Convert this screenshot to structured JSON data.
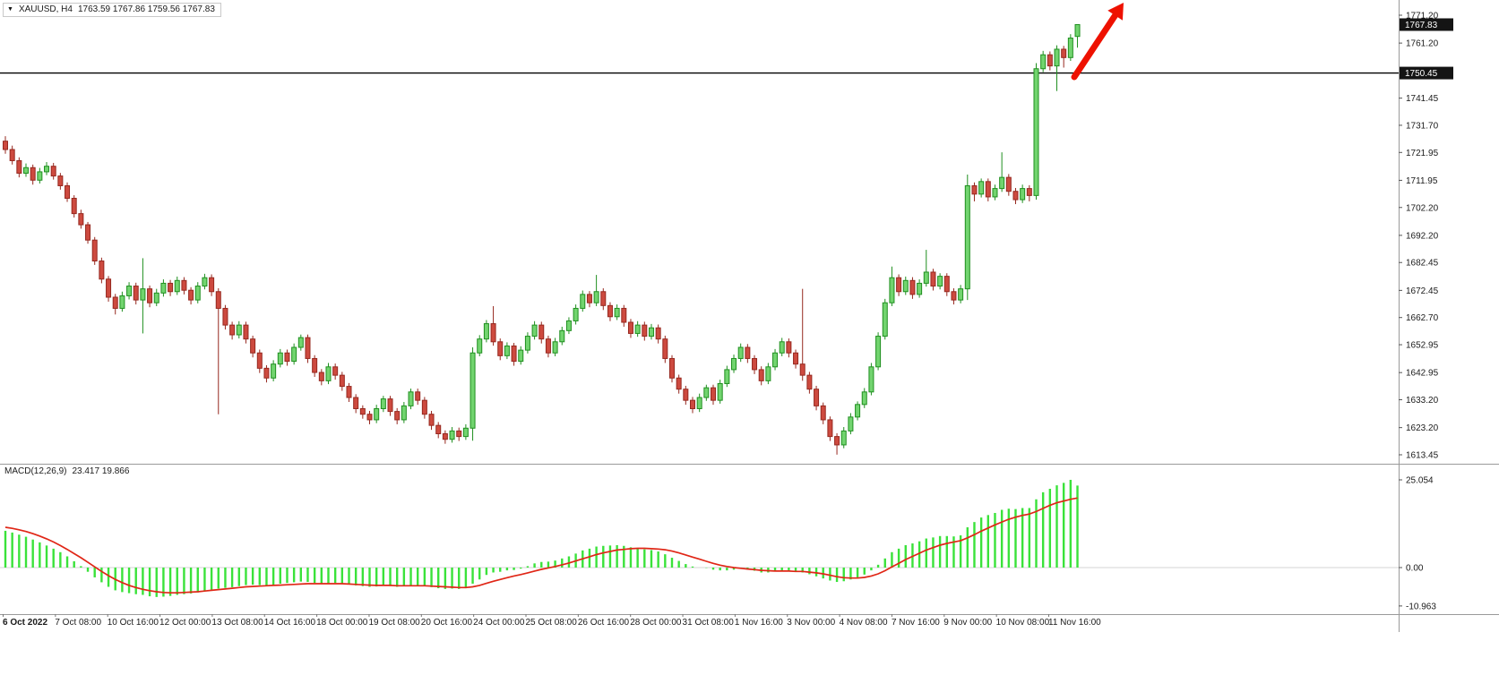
{
  "quote": {
    "symbol": "XAUUSD, H4",
    "ohlc": "1763.59 1767.86 1759.56 1767.83"
  },
  "macd_label": {
    "name": "MACD(12,26,9)",
    "values": "23.417 19.866"
  },
  "price_axis": {
    "ticks": [
      "1771.20",
      "1761.20",
      "1741.45",
      "1731.70",
      "1721.95",
      "1711.95",
      "1702.20",
      "1692.20",
      "1682.45",
      "1672.45",
      "1662.70",
      "1652.95",
      "1642.95",
      "1633.20",
      "1623.20",
      "1613.45"
    ],
    "current_badge": "1767.83",
    "hline_badge": "1750.45"
  },
  "macd_axis": [
    "25.054",
    "0.00",
    "-10.963"
  ],
  "time_axis": [
    "6 Oct 2022",
    "7 Oct 08:00",
    "10 Oct 16:00",
    "12 Oct 00:00",
    "13 Oct 08:00",
    "14 Oct 16:00",
    "18 Oct 00:00",
    "19 Oct 08:00",
    "20 Oct 16:00",
    "24 Oct 00:00",
    "25 Oct 08:00",
    "26 Oct 16:00",
    "28 Oct 00:00",
    "31 Oct 08:00",
    "1 Nov 16:00",
    "3 Nov 00:00",
    "4 Nov 08:00",
    "7 Nov 16:00",
    "9 Nov 00:00",
    "10 Nov 08:00",
    "11 Nov 16:00"
  ],
  "colors": {
    "bull": "#72d46f",
    "bull_border": "#1f8f1f",
    "bear": "#cd4a3f",
    "bear_border": "#96281f",
    "macd_hist": "#3ae23a",
    "macd_signal": "#e02616",
    "hline": "#000000",
    "arrow": "#ee1100",
    "badge_bg": "#141414",
    "badge_text": "#ffffff",
    "axis_line": "#9a9a9a",
    "zero_line": "#d6d6d6"
  },
  "chart_data": {
    "type": "candlestick",
    "symbol": "XAUUSD",
    "timeframe": "H4",
    "title": "XAUUSD, H4 1763.59 1767.86 1759.56 1767.83",
    "price_range": [
      1613.45,
      1771.2
    ],
    "horizontal_line": 1750.45,
    "current_price": 1767.83,
    "last_bar": {
      "open": 1763.59,
      "high": 1767.86,
      "low": 1759.56,
      "close": 1767.83
    },
    "candles": [
      [
        1726,
        1727.8,
        1721.5,
        1723
      ],
      [
        1723,
        1724.4,
        1717.6,
        1719
      ],
      [
        1719,
        1720.2,
        1713,
        1714.5
      ],
      [
        1714.5,
        1718,
        1713.2,
        1716.5
      ],
      [
        1716.5,
        1717.6,
        1710.4,
        1712
      ],
      [
        1712,
        1716.4,
        1710.8,
        1715
      ],
      [
        1715,
        1718.5,
        1713.8,
        1717
      ],
      [
        1717,
        1718.2,
        1712.2,
        1713.5
      ],
      [
        1713.5,
        1714.6,
        1708.6,
        1710
      ],
      [
        1710,
        1711.2,
        1704.2,
        1705.5
      ],
      [
        1705.5,
        1706.6,
        1698.6,
        1700
      ],
      [
        1700,
        1701.4,
        1694.6,
        1696
      ],
      [
        1696,
        1697,
        1689.2,
        1690.5
      ],
      [
        1690.5,
        1691.6,
        1681.6,
        1683
      ],
      [
        1683,
        1684.2,
        1675,
        1676.5
      ],
      [
        1676.5,
        1677.6,
        1668.4,
        1670
      ],
      [
        1670,
        1671.2,
        1663.8,
        1666
      ],
      [
        1666,
        1672,
        1664.8,
        1670.5
      ],
      [
        1670.5,
        1675.4,
        1669.2,
        1674
      ],
      [
        1674,
        1675.2,
        1667.4,
        1669
      ],
      [
        1669,
        1684,
        1657,
        1673
      ],
      [
        1673,
        1674.2,
        1666.4,
        1668
      ],
      [
        1668,
        1673,
        1666.8,
        1671.5
      ],
      [
        1671.5,
        1676.4,
        1670.2,
        1675
      ],
      [
        1675,
        1676.2,
        1670.4,
        1672
      ],
      [
        1672,
        1677.4,
        1670.8,
        1676
      ],
      [
        1676,
        1677.2,
        1671,
        1672.5
      ],
      [
        1672.5,
        1673.6,
        1667.4,
        1669
      ],
      [
        1669,
        1675.4,
        1667.8,
        1674
      ],
      [
        1674,
        1678.4,
        1672.8,
        1677
      ],
      [
        1677,
        1678.2,
        1670.4,
        1672
      ],
      [
        1672,
        1673.2,
        1628,
        1666
      ],
      [
        1666,
        1667.2,
        1658.4,
        1660
      ],
      [
        1660,
        1661.2,
        1654.8,
        1656.5
      ],
      [
        1656.5,
        1661.4,
        1655.2,
        1660
      ],
      [
        1660,
        1661.2,
        1653.4,
        1655
      ],
      [
        1655,
        1656.2,
        1648.4,
        1650
      ],
      [
        1650,
        1651.2,
        1642.8,
        1644.5
      ],
      [
        1644.5,
        1645.6,
        1639.4,
        1641
      ],
      [
        1641,
        1647.4,
        1639.8,
        1646
      ],
      [
        1646,
        1651.4,
        1644.8,
        1650
      ],
      [
        1650,
        1651.2,
        1645.4,
        1647
      ],
      [
        1647,
        1653.4,
        1645.8,
        1652
      ],
      [
        1652,
        1656.6,
        1650.8,
        1655.5
      ],
      [
        1655.5,
        1656.6,
        1646.4,
        1648
      ],
      [
        1648,
        1649.2,
        1641.4,
        1643
      ],
      [
        1643,
        1644.2,
        1638.4,
        1640
      ],
      [
        1640,
        1646.4,
        1638.8,
        1645
      ],
      [
        1645,
        1646.2,
        1640.4,
        1642
      ],
      [
        1642,
        1643.2,
        1636.4,
        1638
      ],
      [
        1638,
        1639.2,
        1632.4,
        1634
      ],
      [
        1634,
        1635.2,
        1628.4,
        1630
      ],
      [
        1630,
        1631.2,
        1626.4,
        1628
      ],
      [
        1628,
        1629.2,
        1624.4,
        1626
      ],
      [
        1626,
        1631.4,
        1624.8,
        1630
      ],
      [
        1630,
        1634.6,
        1628.8,
        1633.5
      ],
      [
        1633.5,
        1634.6,
        1627.4,
        1629
      ],
      [
        1629,
        1630.2,
        1624.4,
        1626
      ],
      [
        1626,
        1632.4,
        1624.8,
        1631
      ],
      [
        1631,
        1637.2,
        1629.8,
        1636
      ],
      [
        1636,
        1637.2,
        1631.4,
        1633
      ],
      [
        1633,
        1634.2,
        1626.4,
        1628
      ],
      [
        1628,
        1629.2,
        1622.4,
        1624
      ],
      [
        1624,
        1625.2,
        1619.4,
        1621
      ],
      [
        1621,
        1622.2,
        1617.4,
        1619
      ],
      [
        1619,
        1623.4,
        1617.8,
        1622
      ],
      [
        1622,
        1623.2,
        1618.4,
        1620
      ],
      [
        1620,
        1624.4,
        1618.8,
        1623
      ],
      [
        1623,
        1652,
        1618.5,
        1650
      ],
      [
        1650,
        1656.4,
        1648.8,
        1655
      ],
      [
        1655,
        1661.8,
        1653.8,
        1660.5
      ],
      [
        1660.5,
        1666.8,
        1652.6,
        1654
      ],
      [
        1654,
        1655.2,
        1647.4,
        1649
      ],
      [
        1649,
        1653.8,
        1647.8,
        1652.5
      ],
      [
        1652.5,
        1653.6,
        1645.4,
        1647
      ],
      [
        1647,
        1652.4,
        1645.8,
        1651
      ],
      [
        1651,
        1657.4,
        1649.8,
        1656
      ],
      [
        1656,
        1661.4,
        1654.8,
        1660
      ],
      [
        1660,
        1661.2,
        1653.4,
        1655
      ],
      [
        1655,
        1656.2,
        1648.4,
        1650
      ],
      [
        1650,
        1655.4,
        1648.8,
        1654
      ],
      [
        1654,
        1659.4,
        1652.8,
        1658
      ],
      [
        1658,
        1662.8,
        1656.8,
        1661.5
      ],
      [
        1661.5,
        1667.4,
        1660.2,
        1666
      ],
      [
        1666,
        1672.4,
        1664.8,
        1671
      ],
      [
        1671,
        1672.2,
        1666.4,
        1668
      ],
      [
        1668,
        1678,
        1666.8,
        1672
      ],
      [
        1672,
        1673.2,
        1665.4,
        1667
      ],
      [
        1667,
        1668.2,
        1661.4,
        1663
      ],
      [
        1663,
        1667.4,
        1661.8,
        1666
      ],
      [
        1666,
        1667.2,
        1659.4,
        1661
      ],
      [
        1661,
        1662.2,
        1655.4,
        1657
      ],
      [
        1657,
        1661.4,
        1655.8,
        1660
      ],
      [
        1660,
        1661.2,
        1654.4,
        1656
      ],
      [
        1656,
        1660.4,
        1654.8,
        1659
      ],
      [
        1659,
        1660.2,
        1653.4,
        1655
      ],
      [
        1655,
        1656.2,
        1646.4,
        1648
      ],
      [
        1648,
        1649.2,
        1639.4,
        1641
      ],
      [
        1641,
        1642.2,
        1635.4,
        1637
      ],
      [
        1637,
        1638.2,
        1631.4,
        1633
      ],
      [
        1633,
        1634.2,
        1628.4,
        1630
      ],
      [
        1630,
        1635.4,
        1628.8,
        1634
      ],
      [
        1634,
        1638.6,
        1632.8,
        1637.5
      ],
      [
        1637.5,
        1638.6,
        1631.4,
        1633
      ],
      [
        1633,
        1640.4,
        1631.8,
        1639
      ],
      [
        1639,
        1645.4,
        1637.8,
        1644
      ],
      [
        1644,
        1649.4,
        1642.8,
        1648
      ],
      [
        1648,
        1653.4,
        1646.8,
        1652
      ],
      [
        1652,
        1653.2,
        1646.4,
        1648
      ],
      [
        1648,
        1649.2,
        1642.4,
        1644
      ],
      [
        1644,
        1645.2,
        1638.4,
        1640
      ],
      [
        1640,
        1646.4,
        1638.8,
        1645
      ],
      [
        1645,
        1651.4,
        1643.8,
        1650
      ],
      [
        1650,
        1655.4,
        1648.8,
        1654
      ],
      [
        1654,
        1655.2,
        1648.4,
        1650
      ],
      [
        1650,
        1651.2,
        1644.4,
        1646
      ],
      [
        1646,
        1673,
        1640,
        1642
      ],
      [
        1642,
        1643.2,
        1635.4,
        1637
      ],
      [
        1637,
        1638.2,
        1629.4,
        1631
      ],
      [
        1631,
        1632.2,
        1624.4,
        1626
      ],
      [
        1626,
        1627.2,
        1618.4,
        1620
      ],
      [
        1620,
        1621.2,
        1613.5,
        1617
      ],
      [
        1617,
        1623.4,
        1615.8,
        1622
      ],
      [
        1622,
        1628.4,
        1620.8,
        1627
      ],
      [
        1627,
        1632.6,
        1625.8,
        1631.5
      ],
      [
        1631.5,
        1637.4,
        1630.2,
        1636
      ],
      [
        1636,
        1646.4,
        1634.8,
        1645
      ],
      [
        1645,
        1657.4,
        1643.8,
        1656
      ],
      [
        1656,
        1669.4,
        1654.8,
        1668
      ],
      [
        1668,
        1681,
        1666.8,
        1677
      ],
      [
        1677,
        1678.2,
        1670.4,
        1672
      ],
      [
        1672,
        1677.4,
        1670.8,
        1676
      ],
      [
        1676,
        1677.2,
        1669.4,
        1671
      ],
      [
        1671,
        1676.4,
        1669.8,
        1675
      ],
      [
        1675,
        1687,
        1673.8,
        1679
      ],
      [
        1679,
        1680.2,
        1672.4,
        1674
      ],
      [
        1674,
        1678.6,
        1672.8,
        1677.5
      ],
      [
        1677.5,
        1678.6,
        1670.4,
        1672
      ],
      [
        1672,
        1673.2,
        1667.4,
        1669
      ],
      [
        1669,
        1674.4,
        1667.8,
        1673
      ],
      [
        1673,
        1714,
        1669,
        1710
      ],
      [
        1710,
        1711.2,
        1704.4,
        1707
      ],
      [
        1707,
        1712.6,
        1705.8,
        1711.5
      ],
      [
        1711.5,
        1712.6,
        1704.4,
        1706
      ],
      [
        1706,
        1710.4,
        1704.8,
        1709
      ],
      [
        1709,
        1722,
        1707.8,
        1713
      ],
      [
        1713,
        1714.2,
        1706.4,
        1708
      ],
      [
        1708,
        1709.2,
        1703.4,
        1705
      ],
      [
        1705,
        1710.4,
        1703.8,
        1709
      ],
      [
        1709,
        1710.2,
        1704.4,
        1706.5
      ],
      [
        1706.5,
        1754,
        1705,
        1752
      ],
      [
        1752,
        1758.4,
        1750.8,
        1757
      ],
      [
        1757,
        1758.2,
        1751.4,
        1753
      ],
      [
        1753,
        1760.4,
        1744,
        1759
      ],
      [
        1759,
        1760.2,
        1752.4,
        1756
      ],
      [
        1756,
        1764.4,
        1754.8,
        1763
      ],
      [
        1763.59,
        1767.86,
        1759.56,
        1767.83
      ]
    ],
    "macd": {
      "params": "12,26,9",
      "range": [
        -10.963,
        25.054
      ],
      "last_values": [
        23.417,
        19.866
      ],
      "histogram": [
        10.5,
        10,
        9.4,
        8.8,
        8,
        7.2,
        6.3,
        5.4,
        4.4,
        3.2,
        1.8,
        0.4,
        -1.2,
        -2.8,
        -4.2,
        -5.5,
        -6.5,
        -7,
        -7.3,
        -7.6,
        -7.8,
        -8.2,
        -8.4,
        -8.3,
        -8.1,
        -7.8,
        -7.6,
        -7.4,
        -7.1,
        -6.7,
        -6.3,
        -6,
        -5.8,
        -5.6,
        -5.3,
        -5,
        -4.9,
        -5,
        -5.1,
        -4.9,
        -4.6,
        -4.4,
        -4.2,
        -4,
        -4.1,
        -4.4,
        -4.6,
        -4.5,
        -4.4,
        -4.5,
        -4.8,
        -5.1,
        -5.3,
        -5.5,
        -5.4,
        -5.2,
        -5.3,
        -5.5,
        -5.3,
        -5,
        -5,
        -5.3,
        -5.6,
        -5.9,
        -6.1,
        -6,
        -6.1,
        -5.9,
        -4.6,
        -3.4,
        -2.1,
        -1.4,
        -1.2,
        -0.8,
        -0.7,
        -0.3,
        0.4,
        1.2,
        1.6,
        1.7,
        2,
        2.6,
        3.2,
        4,
        4.9,
        5.4,
        6,
        6.2,
        6.3,
        6.4,
        6.2,
        5.8,
        5.6,
        5.2,
        5,
        4.6,
        3.8,
        2.8,
        1.9,
        1,
        0.3,
        0,
        -0.1,
        -0.6,
        -0.8,
        -0.8,
        -0.6,
        -0.3,
        -0.5,
        -0.9,
        -1.4,
        -1.4,
        -1.1,
        -0.8,
        -0.9,
        -1.2,
        -1.4,
        -1.9,
        -2.5,
        -3.1,
        -3.7,
        -4.1,
        -3.9,
        -3.4,
        -2.8,
        -2,
        -0.8,
        0.8,
        2.6,
        4.4,
        5.4,
        6.4,
        6.9,
        7.5,
        8.3,
        8.6,
        9,
        9,
        8.9,
        9.2,
        11.5,
        13,
        14.3,
        15,
        15.6,
        16.5,
        16.8,
        16.7,
        17,
        17,
        19.5,
        21.5,
        22.5,
        23.5,
        24.2,
        25.054,
        23.417
      ],
      "signal": [
        11.5,
        11.2,
        10.8,
        10.3,
        9.7,
        9,
        8.2,
        7.3,
        6.3,
        5.2,
        4,
        2.8,
        1.5,
        0.2,
        -1.1,
        -2.3,
        -3.4,
        -4.3,
        -5.1,
        -5.7,
        -6.2,
        -6.6,
        -6.9,
        -7.1,
        -7.2,
        -7.2,
        -7.1,
        -7,
        -6.9,
        -6.7,
        -6.5,
        -6.3,
        -6.1,
        -5.9,
        -5.7,
        -5.5,
        -5.4,
        -5.3,
        -5.2,
        -5.1,
        -5,
        -4.9,
        -4.8,
        -4.7,
        -4.6,
        -4.6,
        -4.6,
        -4.6,
        -4.6,
        -4.6,
        -4.7,
        -4.8,
        -4.9,
        -5,
        -5.1,
        -5.1,
        -5.1,
        -5.2,
        -5.2,
        -5.2,
        -5.2,
        -5.2,
        -5.3,
        -5.4,
        -5.5,
        -5.6,
        -5.7,
        -5.7,
        -5.5,
        -5.1,
        -4.5,
        -3.9,
        -3.4,
        -2.9,
        -2.4,
        -2,
        -1.5,
        -1,
        -0.5,
        -0.1,
        0.3,
        0.8,
        1.3,
        1.9,
        2.5,
        3.1,
        3.7,
        4.2,
        4.6,
        5,
        5.2,
        5.4,
        5.5,
        5.5,
        5.4,
        5.3,
        5.1,
        4.7,
        4.2,
        3.6,
        3,
        2.4,
        1.8,
        1.2,
        0.7,
        0.3,
        0,
        -0.2,
        -0.4,
        -0.6,
        -0.8,
        -0.9,
        -1,
        -1,
        -1,
        -1.1,
        -1.1,
        -1.3,
        -1.5,
        -1.8,
        -2.2,
        -2.6,
        -2.9,
        -3,
        -3,
        -2.8,
        -2.4,
        -1.8,
        -0.9,
        0.2,
        1.2,
        2.3,
        3.2,
        4.1,
        5,
        5.7,
        6.4,
        6.9,
        7.3,
        7.7,
        8.5,
        9.4,
        10.4,
        11.3,
        12.2,
        13,
        13.8,
        14.4,
        14.9,
        15.3,
        16,
        16.9,
        17.8,
        18.5,
        19,
        19.5,
        19.866
      ]
    },
    "time_labels": [
      "6 Oct 2022",
      "7 Oct 08:00",
      "10 Oct 16:00",
      "12 Oct 00:00",
      "13 Oct 08:00",
      "14 Oct 16:00",
      "18 Oct 00:00",
      "19 Oct 08:00",
      "20 Oct 16:00",
      "24 Oct 00:00",
      "25 Oct 08:00",
      "26 Oct 16:00",
      "28 Oct 00:00",
      "31 Oct 08:00",
      "1 Nov 16:00",
      "3 Nov 00:00",
      "4 Nov 08:00",
      "7 Nov 16:00",
      "9 Nov 00:00",
      "10 Nov 08:00",
      "11 Nov 16:00"
    ]
  }
}
